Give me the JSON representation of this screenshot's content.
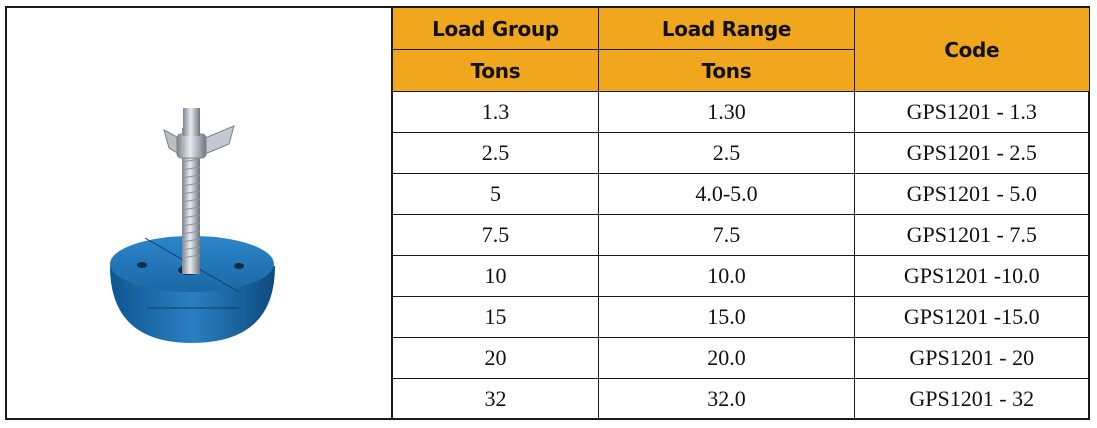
{
  "product": {
    "image_description_icon": "leveling-foot-icon"
  },
  "table": {
    "headers": {
      "load_group": "Load Group",
      "load_group_unit": "Tons",
      "load_range": "Load Range",
      "load_range_unit": "Tons",
      "code": "Code"
    },
    "rows": [
      {
        "group": "1.3",
        "range": "1.30",
        "code": "GPS1201 - 1.3"
      },
      {
        "group": "2.5",
        "range": "2.5",
        "code": "GPS1201 - 2.5"
      },
      {
        "group": "5",
        "range": "4.0-5.0",
        "code": "GPS1201 - 5.0"
      },
      {
        "group": "7.5",
        "range": "7.5",
        "code": "GPS1201 - 7.5"
      },
      {
        "group": "10",
        "range": "10.0",
        "code": "GPS1201 -10.0"
      },
      {
        "group": "15",
        "range": "15.0",
        "code": "GPS1201 -15.0"
      },
      {
        "group": "20",
        "range": "20.0",
        "code": "GPS1201 - 20"
      },
      {
        "group": "32",
        "range": "32.0",
        "code": "GPS1201 - 32"
      }
    ]
  },
  "colors": {
    "header_bg": "#f0a61d",
    "foot_blue": "#1f6fb0"
  }
}
